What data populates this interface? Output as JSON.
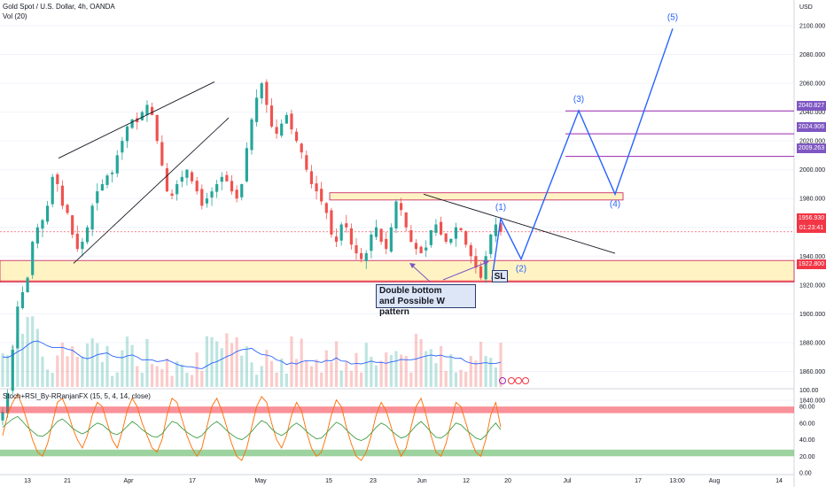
{
  "header": {
    "symbol_line": "Gold Spot / U.S. Dollar, 4h, OANDA",
    "volume_line": "Vol (20)",
    "indicator_line": "Stoch+RSI_By-RRanjanFX (15, 5, 4, 14, close)"
  },
  "price_axis": {
    "currency": "USD",
    "labels": [
      "2100.000",
      "2080.000",
      "2060.000",
      "2040.000",
      "2020.000",
      "2000.000",
      "1980.000",
      "1960.000",
      "1940.000",
      "1920.000",
      "1900.000",
      "1880.000",
      "1860.000",
      "1840.000"
    ]
  },
  "osc_axis": {
    "labels": [
      "100.00",
      "80.00",
      "60.00",
      "40.00",
      "20.00",
      "0.00"
    ]
  },
  "time_axis": {
    "labels": [
      "13",
      "21",
      "Apr",
      "17",
      "May",
      "15",
      "23",
      "Jun",
      "12",
      "20",
      "Jul",
      "17",
      "13:00",
      "Aug",
      "14"
    ]
  },
  "price_tags": [
    {
      "value": "2040.827",
      "color": "#7e57c2"
    },
    {
      "value": "2024.906",
      "color": "#7e57c2"
    },
    {
      "value": "2009.263",
      "color": "#7e57c2"
    },
    {
      "value": "1956.930",
      "color": "#f23645"
    },
    {
      "value": "01:23:41",
      "color": "#f23645"
    },
    {
      "value": "1922.800",
      "color": "#f23645"
    }
  ],
  "annotations": {
    "waves": [
      "(1)",
      "(2)",
      "(3)",
      "(4)",
      "(5)"
    ],
    "callout_line1": "Double bottom",
    "callout_line2": "and Possible W pattern",
    "stop_loss": "SL"
  },
  "colors": {
    "up": "#26a69a",
    "down": "#ef5350",
    "projection": "#2962ff",
    "zone_fill": "#fff3c4",
    "level": "#9c27b0"
  },
  "chart_data": {
    "type": "candlestick",
    "title": "Gold Spot / U.S. Dollar, 4h, OANDA",
    "ylabel": "USD",
    "ylim": [
      1835,
      2112
    ],
    "x_ticks": [
      "13",
      "21",
      "Apr",
      "17",
      "May",
      "15",
      "23",
      "Jun",
      "12",
      "20",
      "Jul",
      "17",
      "13:00",
      "Aug",
      "14"
    ],
    "levels": [
      2040.827,
      2024.906,
      2009.263
    ],
    "last_price": 1956.93,
    "stop_loss": 1922.8,
    "support_zone": [
      1922,
      1937
    ],
    "resistance_zone": [
      1979,
      1984
    ],
    "close_path": [
      1832,
      1845,
      1875,
      1905,
      1915,
      1925,
      1950,
      1960,
      1965,
      1975,
      1995,
      1990,
      1975,
      1970,
      1955,
      1945,
      1950,
      1960,
      1975,
      1985,
      1990,
      1996,
      1998,
      2010,
      2020,
      2030,
      2035,
      2033,
      2040,
      2045,
      2038,
      2020,
      2003,
      1985,
      1982,
      1990,
      1995,
      2000,
      1992,
      1985,
      1975,
      1980,
      1985,
      1990,
      1995,
      1992,
      1985,
      1980,
      1990,
      2015,
      2035,
      2050,
      2060,
      2045,
      2030,
      2025,
      2032,
      2038,
      2028,
      2020,
      2012,
      2000,
      1990,
      1985,
      1978,
      1970,
      1955,
      1950,
      1962,
      1960,
      1948,
      1942,
      1938,
      1942,
      1955,
      1960,
      1950,
      1945,
      1960,
      1978,
      1972,
      1960,
      1950,
      1945,
      1942,
      1946,
      1958,
      1962,
      1955,
      1950,
      1952,
      1960,
      1958,
      1948,
      1940,
      1932,
      1925,
      1940,
      1955,
      1962,
      1957
    ],
    "projection_path": [
      {
        "label": "(1)",
        "price": 1966
      },
      {
        "label": "(2)",
        "price": 1938
      },
      {
        "label": "(3)",
        "price": 2041
      },
      {
        "label": "(4)",
        "price": 1983
      },
      {
        "label": "(5)",
        "price": 2098
      }
    ],
    "oscillator": {
      "ylim": [
        0,
        100
      ],
      "overbought": 80,
      "oversold": 20,
      "stoch": [
        45,
        70,
        85,
        95,
        80,
        60,
        40,
        25,
        20,
        35,
        60,
        85,
        90,
        75,
        55,
        40,
        30,
        45,
        70,
        85,
        80,
        60,
        40,
        30,
        50,
        75,
        90,
        80,
        60,
        45,
        30,
        25,
        40,
        70,
        90,
        85,
        65,
        45,
        30,
        20,
        30,
        55,
        80,
        90,
        75,
        55,
        35,
        20,
        15,
        30,
        55,
        80,
        92,
        85,
        60,
        40,
        30,
        45,
        70,
        85,
        75,
        50,
        30,
        20,
        25,
        45,
        70,
        88,
        80,
        55,
        35,
        20,
        15,
        25,
        45,
        70,
        85,
        75,
        55,
        35,
        20,
        30,
        55,
        80,
        90,
        70,
        45,
        25,
        20,
        35,
        60,
        85,
        80,
        60,
        40,
        25,
        20,
        40,
        70,
        85,
        55
      ],
      "rsi": [
        55,
        60,
        65,
        68,
        62,
        55,
        50,
        45,
        44,
        48,
        55,
        62,
        65,
        60,
        54,
        50,
        47,
        50,
        56,
        60,
        58,
        53,
        48,
        46,
        50,
        56,
        62,
        58,
        52,
        48,
        44,
        43,
        47,
        55,
        62,
        60,
        54,
        49,
        45,
        42,
        45,
        52,
        58,
        62,
        57,
        51,
        46,
        42,
        40,
        44,
        50,
        57,
        63,
        60,
        53,
        48,
        45,
        49,
        56,
        60,
        56,
        50,
        45,
        41,
        42,
        48,
        55,
        61,
        58,
        52,
        46,
        41,
        39,
        42,
        48,
        55,
        60,
        57,
        51,
        46,
        42,
        44,
        50,
        57,
        62,
        56,
        49,
        43,
        42,
        46,
        53,
        60,
        58,
        52,
        47,
        42,
        40,
        45,
        54,
        60,
        52
      ]
    }
  }
}
